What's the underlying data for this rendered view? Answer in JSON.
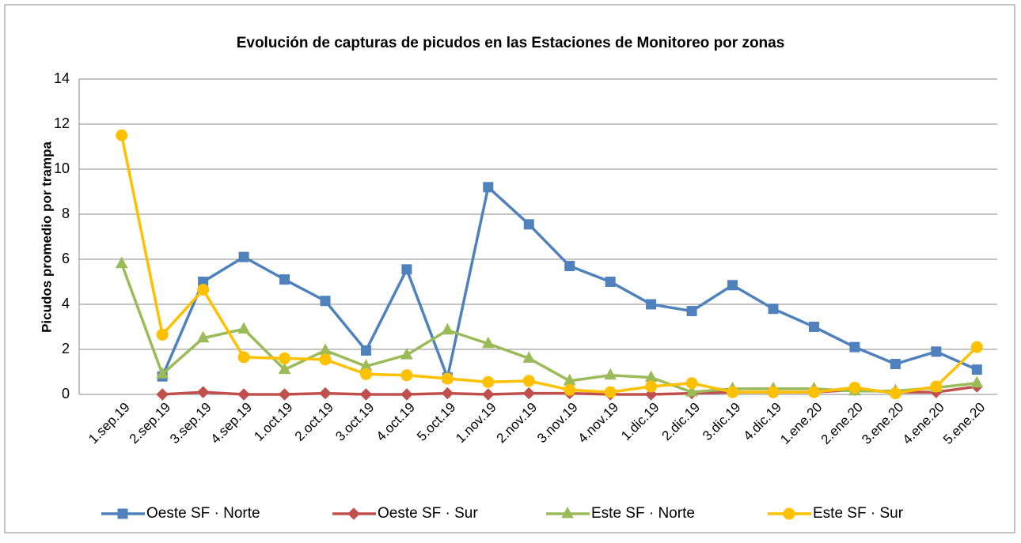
{
  "chart_data": {
    "type": "line",
    "title": "Evolución de capturas de picudos en las Estaciones de Monitoreo por zonas",
    "y_label": "Picudos promedio por trampa",
    "categories": [
      "1.sep.19",
      "2.sep.19",
      "3.sep.19",
      "4.sep.19",
      "1.oct.19",
      "2.oct.19",
      "3.oct.19",
      "4.oct.19",
      "5.oct.19",
      "1.nov.19",
      "2.nov.19",
      "3.nov.19",
      "4.nov.19",
      "1.dic.19",
      "2.dic.19",
      "3.dic.19",
      "4.dic.19",
      "1.ene.20",
      "2.ene.20",
      "3.ene.20",
      "4.ene.20",
      "5.ene.20"
    ],
    "series": [
      {
        "name": "Oeste SF · Norte",
        "color": "#4f81bd",
        "marker": "square",
        "values": [
          null,
          0.8,
          5.0,
          6.1,
          5.1,
          4.15,
          1.95,
          5.55,
          0.75,
          9.2,
          7.55,
          5.7,
          5.0,
          4.0,
          3.7,
          4.85,
          3.8,
          3.0,
          2.1,
          1.35,
          1.9,
          1.1
        ]
      },
      {
        "name": "Oeste SF · Sur",
        "color": "#c0504d",
        "marker": "diamond",
        "values": [
          null,
          0,
          0.1,
          0,
          0,
          0.05,
          0,
          0,
          0.05,
          0,
          0.05,
          0.05,
          0,
          0,
          0.05,
          0.1,
          0.1,
          0.1,
          0.2,
          0.1,
          0.1,
          0.35
        ]
      },
      {
        "name": "Este SF · Norte",
        "color": "#9bbb59",
        "marker": "triangle",
        "values": [
          5.8,
          0.9,
          2.5,
          2.9,
          1.1,
          1.95,
          1.25,
          1.75,
          2.85,
          2.25,
          1.6,
          0.6,
          0.85,
          0.75,
          0.1,
          0.25,
          0.25,
          0.25,
          0.15,
          0.15,
          0.3,
          0.5
        ]
      },
      {
        "name": "Este SF · Sur",
        "color": "#ffc000",
        "marker": "circle",
        "values": [
          11.5,
          2.65,
          4.65,
          1.65,
          1.6,
          1.55,
          0.9,
          0.85,
          0.7,
          0.55,
          0.6,
          0.2,
          0.1,
          0.35,
          0.5,
          0.1,
          0.1,
          0.1,
          0.3,
          0.05,
          0.35,
          2.1
        ]
      }
    ],
    "ylim": [
      0,
      14
    ],
    "yticks": [
      0,
      2,
      4,
      6,
      8,
      10,
      12,
      14
    ],
    "grid": true,
    "legend": "bottom"
  }
}
